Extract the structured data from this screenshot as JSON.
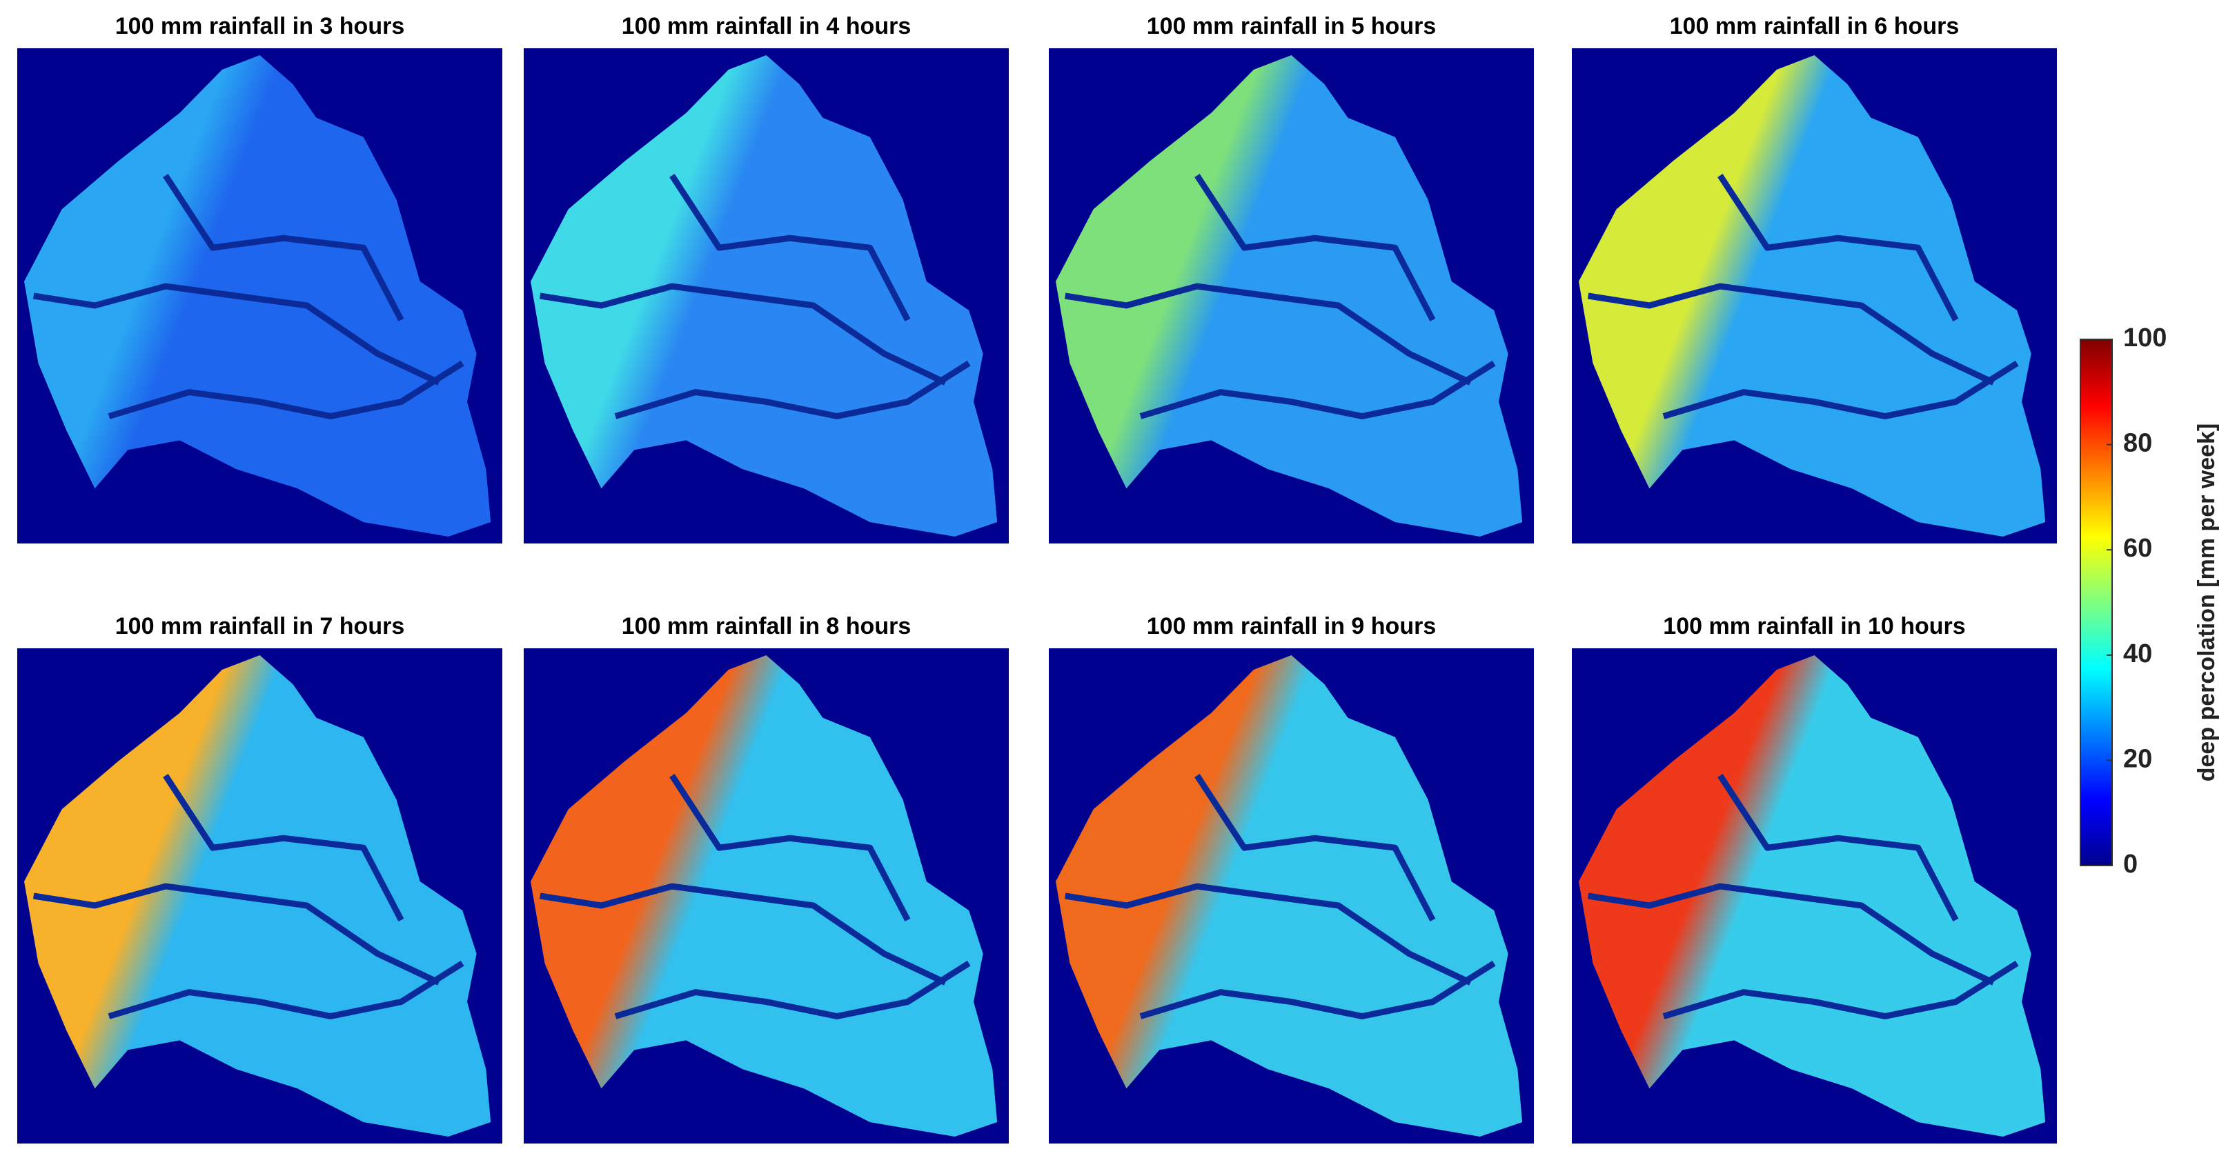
{
  "panels": [
    {
      "title": "100 mm rainfall in 3 hours"
    },
    {
      "title": "100 mm rainfall in 4 hours"
    },
    {
      "title": "100 mm rainfall in 5 hours"
    },
    {
      "title": "100 mm rainfall in 6 hours"
    },
    {
      "title": "100 mm rainfall in 7 hours"
    },
    {
      "title": "100 mm rainfall in 8 hours"
    },
    {
      "title": "100 mm rainfall in 9 hours"
    },
    {
      "title": "100 mm rainfall in 10 hours"
    }
  ],
  "colorbar": {
    "label": "deep percolation [mm per week]",
    "lim": [
      0,
      100
    ],
    "ticks": [
      0,
      20,
      40,
      60,
      80,
      100
    ]
  }
}
